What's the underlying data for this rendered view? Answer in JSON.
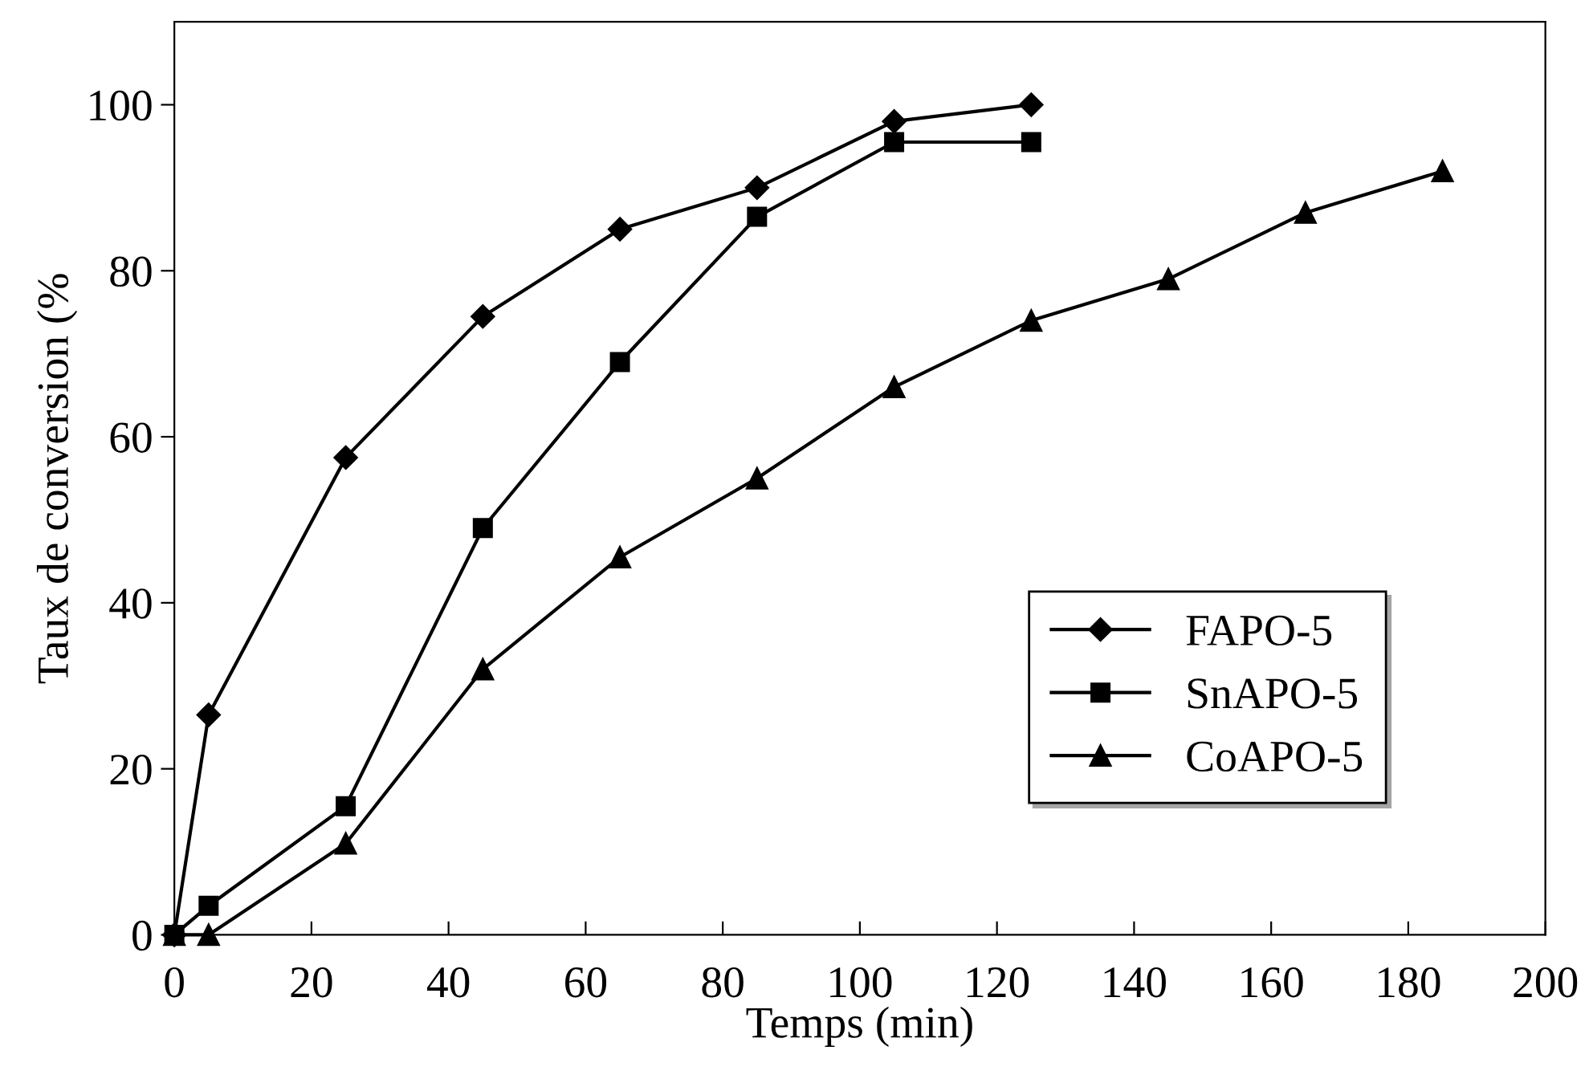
{
  "chart_data": {
    "type": "line",
    "xlabel": "Temps (min)",
    "ylabel": "Taux de conversion (%",
    "xlim": [
      0,
      200
    ],
    "xticks": [
      0,
      20,
      40,
      60,
      80,
      100,
      120,
      140,
      160,
      180,
      200
    ],
    "ylim": [
      0,
      110
    ],
    "yticks": [
      0,
      20,
      40,
      60,
      80,
      100
    ],
    "grid": false,
    "legend": "bottom right",
    "line_style": "solid",
    "series": [
      {
        "name": "FAPO-5",
        "color": "#000000",
        "marker": "diamond",
        "x": [
          0,
          5,
          25,
          45,
          65,
          85,
          105,
          125
        ],
        "values": [
          0,
          26.5,
          57.5,
          74.5,
          85,
          90,
          98,
          100
        ]
      },
      {
        "name": "SnAPO-5",
        "color": "#000000",
        "marker": "square",
        "x": [
          0,
          5,
          25,
          45,
          65,
          85,
          105,
          125
        ],
        "values": [
          0,
          3.5,
          15.5,
          49,
          69,
          86.5,
          95.5,
          95.5
        ]
      },
      {
        "name": "CoAPO-5",
        "color": "#000000",
        "marker": "triangle",
        "x": [
          0,
          5,
          25,
          45,
          65,
          85,
          105,
          125,
          145,
          165,
          185
        ],
        "values": [
          0,
          0,
          11,
          32,
          45.5,
          55,
          66,
          74,
          79,
          87,
          92
        ]
      }
    ]
  }
}
